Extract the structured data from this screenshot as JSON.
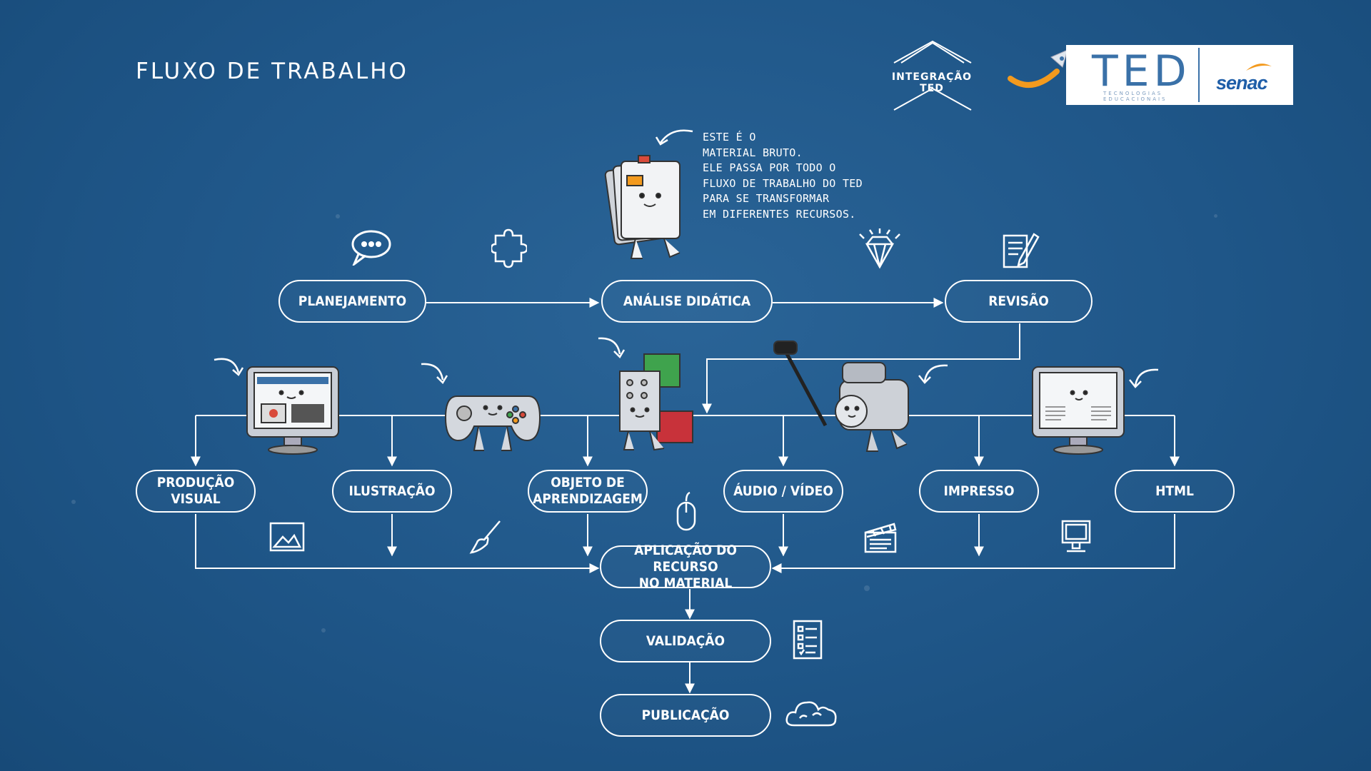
{
  "header": {
    "title": "FLUXO DE TRABALHO"
  },
  "branding": {
    "integration_label": "INTEGRAÇÃO TED",
    "ted": "TED",
    "ted_subtitle_1": "TECNOLOGIAS",
    "ted_subtitle_2": "EDUCACIONAIS",
    "senac": "senac"
  },
  "note": "ESTE É O\nMATERIAL BRUTO.\nELE PASSA POR TODO O\nFLUXO DE TRABALHO DO TED\nPARA SE TRANSFORMAR\nEM DIFERENTES RECURSOS.",
  "nodes": {
    "planejamento": "PLANEJAMENTO",
    "analise": "ANÁLISE DIDÁTICA",
    "revisao": "REVISÃO",
    "producao": "PRODUÇÃO\nVISUAL",
    "ilustracao": "ILUSTRAÇÃO",
    "objeto": "OBJETO DE\nAPRENDIZAGEM",
    "audio": "ÁUDIO / VÍDEO",
    "impresso": "IMPRESSO",
    "html": "HTML",
    "aplicacao": "APLICAÇÃO DO RECURSO\nNO MATERIAL",
    "validacao": "VALIDAÇÃO",
    "publicacao": "PUBLICAÇÃO"
  },
  "icons": [
    "speech-bubble-icon",
    "puzzle-icon",
    "diamond-icon",
    "document-pen-icon",
    "image-frame-icon",
    "paintbrush-icon",
    "mouse-icon",
    "clapperboard-icon",
    "monitor-icon",
    "checklist-icon",
    "cloud-icon"
  ],
  "colors": {
    "background": "#1f5688",
    "line": "#ffffff",
    "ted_blue": "#3a71a8",
    "senac_orange": "#f39a1e"
  }
}
